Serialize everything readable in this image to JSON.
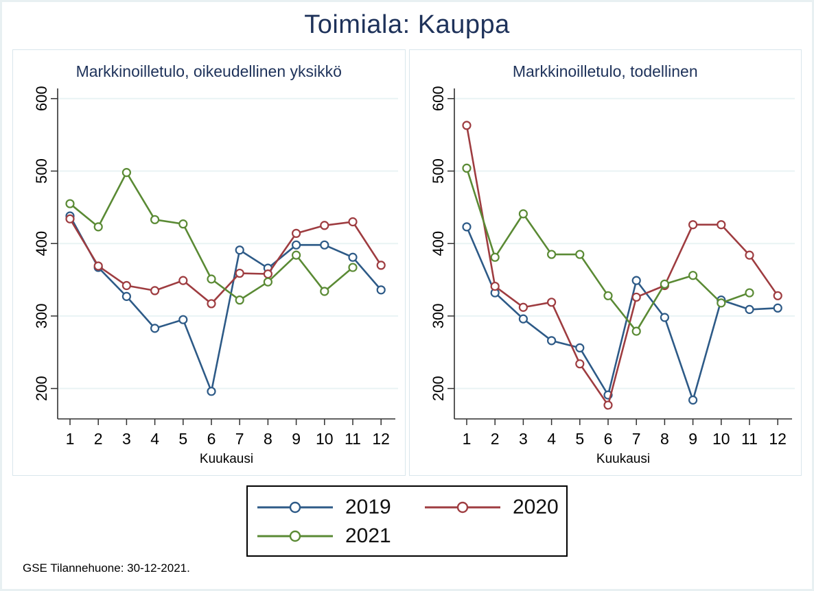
{
  "title": "Toimiala: Kauppa",
  "footer": "GSE Tilannehuone: 30-12-2021.",
  "colors": {
    "navy_text": "#1e325a",
    "axis": "#2f2f2f",
    "gridline": "#e9f3f4",
    "panel_border": "#d9e6ec",
    "series_2019": "#2d5a87",
    "series_2020": "#9e3c40",
    "series_2021": "#5a8a34"
  },
  "legend": {
    "position": "bottom-center",
    "items": [
      {
        "label": "2019",
        "color": "#2d5a87",
        "marker": "open-circle"
      },
      {
        "label": "2020",
        "color": "#9e3c40",
        "marker": "open-circle"
      },
      {
        "label": "2021",
        "color": "#5a8a34",
        "marker": "open-circle"
      }
    ]
  },
  "chart_data": [
    {
      "type": "line",
      "title": "Markkinoilletulo, oikeudellinen yksikkö",
      "xlabel": "Kuukausi",
      "ylabel": "",
      "x": [
        1,
        2,
        3,
        4,
        5,
        6,
        7,
        8,
        9,
        10,
        11,
        12
      ],
      "yticks": [
        200,
        300,
        400,
        500,
        600
      ],
      "ylim": [
        158,
        614
      ],
      "grid": true,
      "series": [
        {
          "name": "2019",
          "color": "#2d5a87",
          "values": [
            438,
            367,
            327,
            283,
            295,
            196,
            391,
            366,
            398,
            398,
            381,
            336
          ]
        },
        {
          "name": "2020",
          "color": "#9e3c40",
          "values": [
            434,
            369,
            342,
            335,
            349,
            317,
            359,
            358,
            414,
            425,
            430,
            370
          ]
        },
        {
          "name": "2021",
          "color": "#5a8a34",
          "values": [
            455,
            423,
            498,
            433,
            427,
            351,
            322,
            347,
            384,
            334,
            367,
            null
          ]
        }
      ]
    },
    {
      "type": "line",
      "title": "Markkinoilletulo, todellinen",
      "xlabel": "Kuukausi",
      "ylabel": "",
      "x": [
        1,
        2,
        3,
        4,
        5,
        6,
        7,
        8,
        9,
        10,
        11,
        12
      ],
      "yticks": [
        200,
        300,
        400,
        500,
        600
      ],
      "ylim": [
        158,
        614
      ],
      "grid": true,
      "series": [
        {
          "name": "2019",
          "color": "#2d5a87",
          "values": [
            423,
            332,
            296,
            266,
            256,
            191,
            349,
            298,
            184,
            322,
            309,
            311
          ]
        },
        {
          "name": "2020",
          "color": "#9e3c40",
          "values": [
            563,
            341,
            312,
            319,
            234,
            177,
            326,
            342,
            426,
            426,
            384,
            328
          ]
        },
        {
          "name": "2021",
          "color": "#5a8a34",
          "values": [
            504,
            381,
            441,
            385,
            385,
            328,
            279,
            344,
            356,
            318,
            332,
            null
          ]
        }
      ]
    }
  ]
}
